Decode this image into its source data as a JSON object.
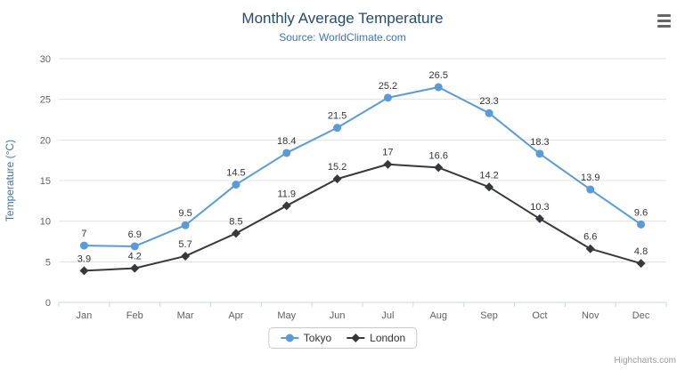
{
  "chart": {
    "credits": "Highcharts.com"
  },
  "chart_data": {
    "type": "line",
    "title": "Monthly Average Temperature",
    "subtitle": "Source: WorldClimate.com",
    "categories": [
      "Jan",
      "Feb",
      "Mar",
      "Apr",
      "May",
      "Jun",
      "Jul",
      "Aug",
      "Sep",
      "Oct",
      "Nov",
      "Dec"
    ],
    "series": [
      {
        "name": "Tokyo",
        "color": "#5b9bd5",
        "marker": "circle",
        "values": [
          7,
          6.9,
          9.5,
          14.5,
          18.4,
          21.5,
          25.2,
          26.5,
          23.3,
          18.3,
          13.9,
          9.6
        ]
      },
      {
        "name": "London",
        "color": "#37383c",
        "marker": "diamond",
        "values": [
          3.9,
          4.2,
          5.7,
          8.5,
          11.9,
          15.2,
          17,
          16.6,
          14.2,
          10.3,
          6.6,
          4.8
        ]
      }
    ],
    "xlabel": "",
    "ylabel": "Temperature (°C)",
    "ylim": [
      0,
      30
    ],
    "yticks": [
      0,
      5,
      10,
      15,
      20,
      25,
      30
    ],
    "grid": true,
    "legend_position": "bottom",
    "colors": {
      "title": "#274b6d",
      "subtitle": "#4572a7",
      "axis_label": "#606060",
      "data_label": "#333333",
      "gridline": "#e0e0e0",
      "axis_line": "#ccd6eb"
    }
  }
}
